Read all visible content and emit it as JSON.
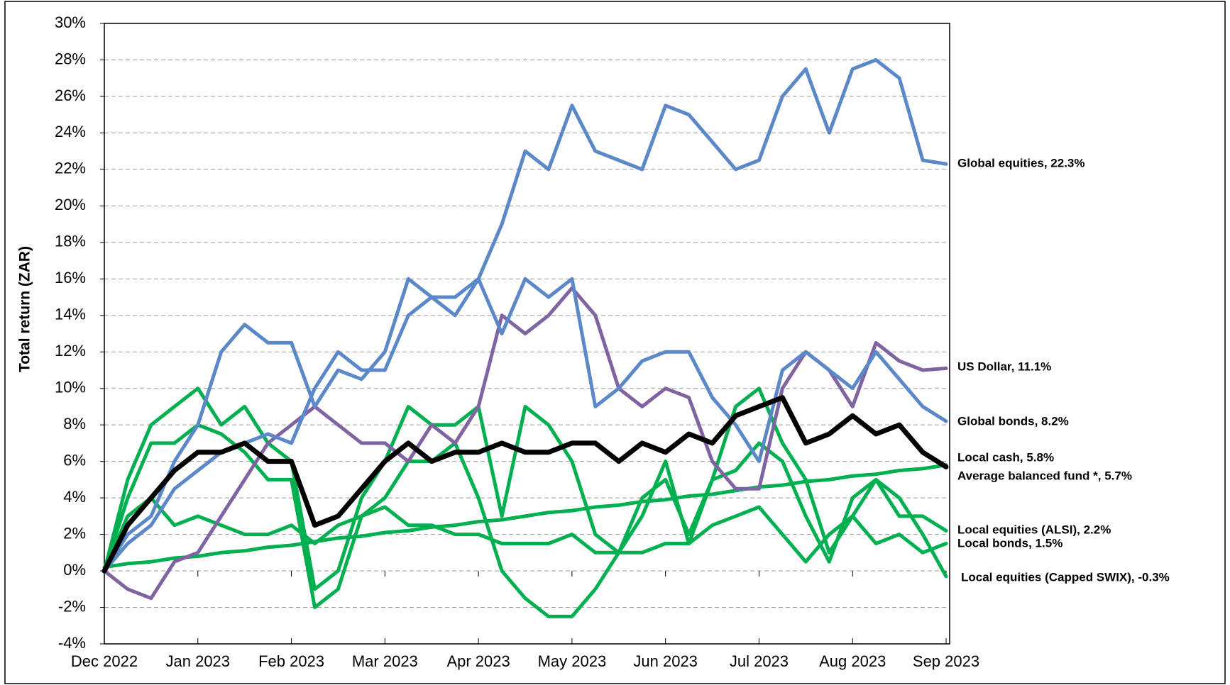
{
  "chart_data": {
    "type": "line",
    "y_label": "Total return (ZAR)",
    "categories": [
      "Dec 2022",
      null,
      null,
      null,
      "Jan 2023",
      null,
      null,
      null,
      "Feb 2023",
      null,
      null,
      null,
      "Mar 2023",
      null,
      null,
      null,
      "Apr 2023",
      null,
      null,
      null,
      "May 2023",
      null,
      null,
      null,
      "Jun 2023",
      null,
      null,
      null,
      "Jul 2023",
      null,
      null,
      null,
      "Aug 2023",
      null,
      null,
      null,
      "Sep 2023"
    ],
    "ylim": [
      -4,
      30
    ],
    "yticks": [
      {
        "value": -4,
        "label": "-4%"
      },
      {
        "value": -2,
        "label": "-2%"
      },
      {
        "value": 0,
        "label": "0%"
      },
      {
        "value": 2,
        "label": "2%"
      },
      {
        "value": 4,
        "label": "4%"
      },
      {
        "value": 6,
        "label": "6%"
      },
      {
        "value": 8,
        "label": "8%"
      },
      {
        "value": 10,
        "label": "10%"
      },
      {
        "value": 12,
        "label": "12%"
      },
      {
        "value": 14,
        "label": "14%"
      },
      {
        "value": 16,
        "label": "16%"
      },
      {
        "value": 18,
        "label": "18%"
      },
      {
        "value": 20,
        "label": "20%"
      },
      {
        "value": 22,
        "label": "22%"
      },
      {
        "value": 24,
        "label": "24%"
      },
      {
        "value": 26,
        "label": "26%"
      },
      {
        "value": 28,
        "label": "28%"
      },
      {
        "value": 30,
        "label": "30%"
      }
    ],
    "grid": true,
    "series": [
      {
        "name": "Local equities (Capped SWIX)",
        "end_label": "Local equities (Capped  SWIX), -0.3%",
        "color": "#00b050",
        "values": [
          0,
          4,
          7,
          7,
          8,
          7.5,
          6.5,
          5,
          5,
          -2,
          -1,
          3,
          4,
          6,
          6,
          7,
          4,
          0,
          -1.5,
          -2.5,
          -2.5,
          -1,
          1,
          4,
          5,
          2,
          5,
          5.5,
          7,
          6,
          3,
          0.5,
          4,
          5,
          4,
          2,
          -0.3
        ]
      },
      {
        "name": "Local bonds",
        "end_label": "Local bonds, 1.5%",
        "color": "#00b050",
        "values": [
          0,
          3,
          4,
          2.5,
          3,
          2.5,
          2,
          2,
          2.5,
          1.5,
          2.5,
          3,
          3.5,
          2.5,
          2.5,
          2,
          2,
          1.5,
          1.5,
          1.5,
          2,
          1,
          1,
          1,
          1.5,
          1.5,
          2.5,
          3,
          3.5,
          2,
          0.5,
          2,
          3,
          1.5,
          2,
          1,
          1.5
        ]
      },
      {
        "name": "Local equities (ALSI)",
        "end_label": "Local equities (ALSI), 2.2%",
        "color": "#00b050",
        "values": [
          0,
          5,
          8,
          9,
          10,
          8,
          9,
          7,
          6,
          -1,
          0,
          4,
          6,
          9,
          8,
          8,
          9,
          3,
          9,
          8,
          6,
          2,
          1,
          3,
          6,
          1.5,
          5,
          9,
          10,
          7,
          5,
          1,
          3,
          5,
          3,
          3,
          2.2
        ]
      },
      {
        "name": "Local cash",
        "end_label": "Local cash, 5.8%",
        "color": "#00b050",
        "values": [
          0.2,
          0.4,
          0.5,
          0.7,
          0.8,
          1.0,
          1.1,
          1.3,
          1.4,
          1.6,
          1.8,
          1.9,
          2.1,
          2.2,
          2.4,
          2.5,
          2.7,
          2.8,
          3.0,
          3.2,
          3.3,
          3.5,
          3.6,
          3.8,
          3.9,
          4.1,
          4.2,
          4.4,
          4.6,
          4.7,
          4.9,
          5.0,
          5.2,
          5.3,
          5.5,
          5.6,
          5.8
        ]
      },
      {
        "name": "US Dollar",
        "end_label": "US Dollar,  11.1%",
        "color": "#8064a2",
        "values": [
          0,
          -1,
          -1.5,
          0.5,
          1,
          3,
          5,
          7,
          8,
          9,
          8,
          7,
          7,
          6,
          8,
          7,
          9,
          14,
          13,
          14,
          15.5,
          14,
          10,
          9,
          10,
          9.5,
          6,
          4.5,
          4.5,
          10,
          12,
          11,
          9,
          12.5,
          11.5,
          11,
          11.1
        ]
      },
      {
        "name": "Global bonds",
        "end_label": "Global  bonds, 8.2%",
        "color": "#5b88c8",
        "values": [
          0,
          1.5,
          2.5,
          4.5,
          5.5,
          6.5,
          7,
          7.5,
          7,
          10,
          12,
          11,
          11,
          14,
          15,
          14,
          16,
          13,
          16,
          15,
          16,
          9,
          10,
          11.5,
          12,
          12,
          9.5,
          8,
          6,
          11,
          12,
          11,
          10,
          12,
          10.5,
          9,
          8.2
        ]
      },
      {
        "name": "Global equities",
        "end_label": "Global  equities, 22.3%",
        "color": "#5b88c8",
        "values": [
          0,
          2,
          3,
          6,
          8,
          12,
          13.5,
          12.5,
          12.5,
          9,
          11,
          10.5,
          12,
          16,
          15,
          15,
          16,
          19,
          23,
          22,
          25.5,
          23,
          22.5,
          22,
          25.5,
          25,
          23.5,
          22,
          22.5,
          26,
          27.5,
          24,
          27.5,
          28,
          27,
          22.5,
          22.3
        ]
      },
      {
        "name": "Average balanced fund *",
        "end_label": "Average balanced fund *, 5.7%",
        "color": "#000000",
        "width": 7,
        "values": [
          0,
          2.5,
          4,
          5.5,
          6.5,
          6.5,
          7,
          6,
          6,
          2.5,
          3,
          4.5,
          6,
          7,
          6,
          6.5,
          6.5,
          7,
          6.5,
          6.5,
          7,
          7,
          6,
          7,
          6.5,
          7.5,
          7,
          8.5,
          9,
          9.5,
          7,
          7.5,
          8.5,
          7.5,
          8,
          6.5,
          5.7
        ]
      }
    ]
  }
}
